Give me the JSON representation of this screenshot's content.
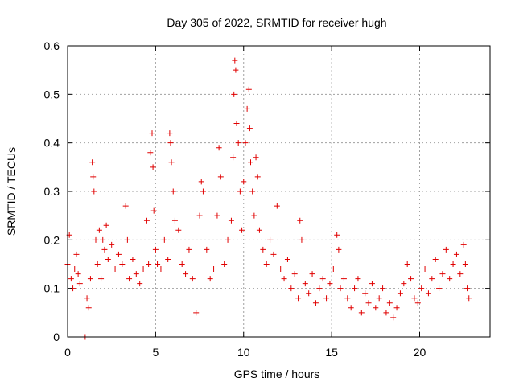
{
  "chart_data": {
    "type": "scatter",
    "title": "Day 305 of 2022, SRMTID for receiver hugh",
    "xlabel": "GPS time / hours",
    "ylabel": "SRMTID / TECUs",
    "xlim": [
      0,
      24
    ],
    "ylim": [
      0,
      0.6
    ],
    "x_ticks": [
      "0",
      "5",
      "10",
      "15",
      "20"
    ],
    "y_ticks": [
      "0",
      "0.1",
      "0.2",
      "0.3",
      "0.4",
      "0.5",
      "0.6"
    ],
    "grid": true,
    "marker": "+",
    "color": "#e00000",
    "series": [
      {
        "name": "SRMTID",
        "points": [
          [
            0.0,
            0.15
          ],
          [
            0.1,
            0.21
          ],
          [
            0.2,
            0.12
          ],
          [
            0.3,
            0.1
          ],
          [
            0.4,
            0.14
          ],
          [
            0.5,
            0.17
          ],
          [
            0.6,
            0.13
          ],
          [
            0.7,
            0.11
          ],
          [
            1.0,
            0.0
          ],
          [
            1.1,
            0.08
          ],
          [
            1.2,
            0.06
          ],
          [
            1.3,
            0.12
          ],
          [
            1.4,
            0.36
          ],
          [
            1.45,
            0.33
          ],
          [
            1.5,
            0.3
          ],
          [
            1.6,
            0.2
          ],
          [
            1.7,
            0.15
          ],
          [
            1.8,
            0.22
          ],
          [
            1.9,
            0.12
          ],
          [
            2.0,
            0.2
          ],
          [
            2.1,
            0.18
          ],
          [
            2.2,
            0.23
          ],
          [
            2.3,
            0.16
          ],
          [
            2.5,
            0.19
          ],
          [
            2.7,
            0.14
          ],
          [
            2.9,
            0.17
          ],
          [
            3.1,
            0.15
          ],
          [
            3.3,
            0.27
          ],
          [
            3.4,
            0.2
          ],
          [
            3.5,
            0.12
          ],
          [
            3.7,
            0.16
          ],
          [
            3.9,
            0.13
          ],
          [
            4.1,
            0.11
          ],
          [
            4.3,
            0.14
          ],
          [
            4.5,
            0.24
          ],
          [
            4.6,
            0.15
          ],
          [
            4.7,
            0.38
          ],
          [
            4.8,
            0.42
          ],
          [
            4.85,
            0.35
          ],
          [
            4.9,
            0.26
          ],
          [
            5.0,
            0.18
          ],
          [
            5.1,
            0.15
          ],
          [
            5.3,
            0.14
          ],
          [
            5.5,
            0.2
          ],
          [
            5.7,
            0.16
          ],
          [
            5.8,
            0.42
          ],
          [
            5.85,
            0.4
          ],
          [
            5.9,
            0.36
          ],
          [
            6.0,
            0.3
          ],
          [
            6.1,
            0.24
          ],
          [
            6.3,
            0.22
          ],
          [
            6.5,
            0.15
          ],
          [
            6.7,
            0.13
          ],
          [
            6.9,
            0.18
          ],
          [
            7.1,
            0.12
          ],
          [
            7.3,
            0.05
          ],
          [
            7.5,
            0.25
          ],
          [
            7.6,
            0.32
          ],
          [
            7.7,
            0.3
          ],
          [
            7.9,
            0.18
          ],
          [
            8.1,
            0.12
          ],
          [
            8.3,
            0.14
          ],
          [
            8.5,
            0.25
          ],
          [
            8.6,
            0.39
          ],
          [
            8.7,
            0.33
          ],
          [
            8.9,
            0.15
          ],
          [
            9.1,
            0.2
          ],
          [
            9.3,
            0.24
          ],
          [
            9.4,
            0.37
          ],
          [
            9.45,
            0.5
          ],
          [
            9.5,
            0.57
          ],
          [
            9.55,
            0.55
          ],
          [
            9.6,
            0.44
          ],
          [
            9.7,
            0.4
          ],
          [
            9.8,
            0.3
          ],
          [
            9.9,
            0.22
          ],
          [
            10.0,
            0.32
          ],
          [
            10.1,
            0.4
          ],
          [
            10.2,
            0.47
          ],
          [
            10.3,
            0.51
          ],
          [
            10.35,
            0.43
          ],
          [
            10.4,
            0.36
          ],
          [
            10.5,
            0.3
          ],
          [
            10.6,
            0.25
          ],
          [
            10.7,
            0.37
          ],
          [
            10.8,
            0.33
          ],
          [
            10.9,
            0.22
          ],
          [
            11.1,
            0.18
          ],
          [
            11.3,
            0.15
          ],
          [
            11.5,
            0.2
          ],
          [
            11.7,
            0.17
          ],
          [
            11.9,
            0.27
          ],
          [
            12.1,
            0.14
          ],
          [
            12.3,
            0.12
          ],
          [
            12.5,
            0.16
          ],
          [
            12.7,
            0.1
          ],
          [
            12.9,
            0.13
          ],
          [
            13.1,
            0.08
          ],
          [
            13.2,
            0.24
          ],
          [
            13.3,
            0.2
          ],
          [
            13.5,
            0.11
          ],
          [
            13.7,
            0.09
          ],
          [
            13.9,
            0.13
          ],
          [
            14.1,
            0.07
          ],
          [
            14.3,
            0.1
          ],
          [
            14.5,
            0.12
          ],
          [
            14.7,
            0.08
          ],
          [
            14.9,
            0.11
          ],
          [
            15.1,
            0.14
          ],
          [
            15.3,
            0.21
          ],
          [
            15.4,
            0.18
          ],
          [
            15.5,
            0.1
          ],
          [
            15.7,
            0.12
          ],
          [
            15.9,
            0.08
          ],
          [
            16.1,
            0.06
          ],
          [
            16.3,
            0.1
          ],
          [
            16.5,
            0.12
          ],
          [
            16.7,
            0.05
          ],
          [
            16.9,
            0.09
          ],
          [
            17.1,
            0.07
          ],
          [
            17.3,
            0.11
          ],
          [
            17.5,
            0.06
          ],
          [
            17.7,
            0.08
          ],
          [
            17.9,
            0.1
          ],
          [
            18.1,
            0.05
          ],
          [
            18.3,
            0.07
          ],
          [
            18.5,
            0.04
          ],
          [
            18.7,
            0.06
          ],
          [
            18.9,
            0.09
          ],
          [
            19.1,
            0.11
          ],
          [
            19.3,
            0.15
          ],
          [
            19.5,
            0.12
          ],
          [
            19.7,
            0.08
          ],
          [
            19.9,
            0.07
          ],
          [
            20.1,
            0.1
          ],
          [
            20.3,
            0.14
          ],
          [
            20.5,
            0.09
          ],
          [
            20.7,
            0.12
          ],
          [
            20.9,
            0.16
          ],
          [
            21.1,
            0.1
          ],
          [
            21.3,
            0.13
          ],
          [
            21.5,
            0.18
          ],
          [
            21.7,
            0.12
          ],
          [
            21.9,
            0.15
          ],
          [
            22.1,
            0.17
          ],
          [
            22.3,
            0.13
          ],
          [
            22.5,
            0.19
          ],
          [
            22.6,
            0.15
          ],
          [
            22.7,
            0.1
          ],
          [
            22.8,
            0.08
          ]
        ]
      }
    ]
  }
}
